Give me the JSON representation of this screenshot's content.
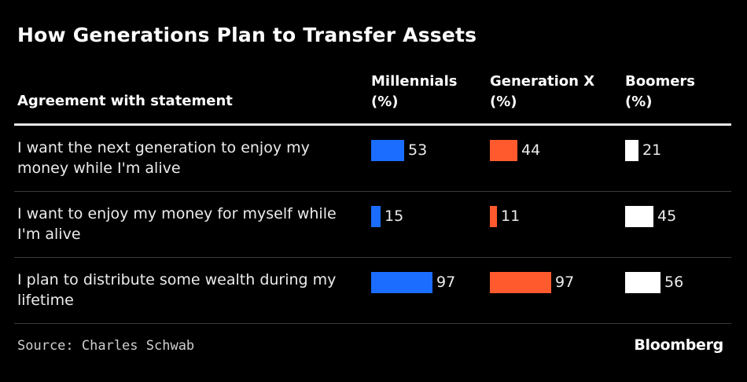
{
  "chart_data": {
    "type": "bar",
    "title": "How Generations Plan to Transfer Assets",
    "row_header": "Agreement with statement",
    "categories": [
      "I want the next generation to enjoy my money while I'm alive",
      "I want to enjoy my money for myself while I'm alive",
      "I plan to distribute some wealth during my lifetime"
    ],
    "series": [
      {
        "name": "Millennials",
        "unit": "(%)",
        "color": "#1a6dff",
        "values": [
          53,
          15,
          97
        ]
      },
      {
        "name": "Generation X",
        "unit": "(%)",
        "color": "#ff5a2e",
        "values": [
          44,
          11,
          97
        ]
      },
      {
        "name": "Boomers",
        "unit": "(%)",
        "color": "#ffffff",
        "values": [
          21,
          45,
          56
        ]
      }
    ],
    "xlim": [
      0,
      100
    ],
    "grid": false
  },
  "footer": {
    "source": "Source: Charles Schwab",
    "logo": "Bloomberg"
  }
}
